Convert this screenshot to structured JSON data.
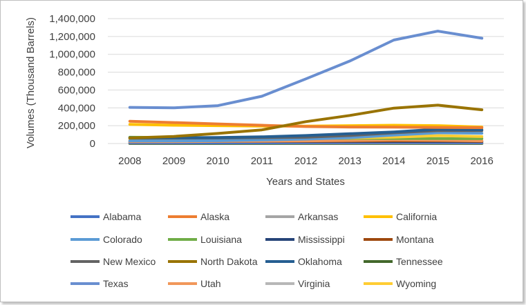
{
  "chart_data": {
    "type": "line",
    "title": "",
    "xlabel": "Years and States",
    "ylabel": "Volumes (Thousand Barrels)",
    "x": [
      "2008",
      "2009",
      "2010",
      "2011",
      "2012",
      "2013",
      "2014",
      "2015",
      "2016"
    ],
    "ylim": [
      0,
      1400000
    ],
    "yticks": [
      0,
      200000,
      400000,
      600000,
      800000,
      1000000,
      1200000,
      1400000
    ],
    "ytick_labels": [
      "0",
      "200,000",
      "400,000",
      "600,000",
      "800,000",
      "1,000,000",
      "1,200,000",
      "1,400,000"
    ],
    "grid": "horizontal",
    "legend_position": "bottom",
    "series": [
      {
        "name": "Alabama",
        "color": "#4472C4",
        "values": [
          9000,
          8000,
          8000,
          8000,
          9000,
          11000,
          12000,
          11000,
          9000
        ]
      },
      {
        "name": "Alaska",
        "color": "#ED7D31",
        "values": [
          250000,
          235000,
          220000,
          205000,
          190000,
          185000,
          183000,
          180000,
          178000
        ]
      },
      {
        "name": "Arkansas",
        "color": "#A5A5A5",
        "values": [
          6000,
          6000,
          6000,
          6000,
          6000,
          6000,
          6000,
          6000,
          6000
        ]
      },
      {
        "name": "California",
        "color": "#FFC000",
        "values": [
          215000,
          205000,
          200000,
          195000,
          196000,
          200000,
          205000,
          200000,
          185000
        ]
      },
      {
        "name": "Colorado",
        "color": "#5B9BD5",
        "values": [
          30000,
          30000,
          32000,
          40000,
          50000,
          65000,
          95000,
          120000,
          115000
        ]
      },
      {
        "name": "Louisiana",
        "color": "#70AD47",
        "values": [
          70000,
          68000,
          65000,
          62000,
          60000,
          58000,
          57000,
          56000,
          55000
        ]
      },
      {
        "name": "Mississippi",
        "color": "#264478",
        "values": [
          22000,
          23000,
          23000,
          24000,
          24000,
          24000,
          24000,
          24000,
          23000
        ]
      },
      {
        "name": "Montana",
        "color": "#9E480E",
        "values": [
          30000,
          28000,
          25000,
          25000,
          26000,
          28000,
          30000,
          30000,
          25000
        ]
      },
      {
        "name": "New Mexico",
        "color": "#636363",
        "values": [
          60000,
          61000,
          62000,
          66000,
          70000,
          90000,
          120000,
          145000,
          145000
        ]
      },
      {
        "name": "North Dakota",
        "color": "#997300",
        "values": [
          63000,
          80000,
          113000,
          153000,
          245000,
          315000,
          397000,
          430000,
          378000
        ]
      },
      {
        "name": "Oklahoma",
        "color": "#255E91",
        "values": [
          65000,
          66000,
          68000,
          75000,
          90000,
          110000,
          130000,
          160000,
          155000
        ]
      },
      {
        "name": "Tennessee",
        "color": "#43682B",
        "values": [
          300,
          300,
          300,
          300,
          300,
          300,
          300,
          300,
          300
        ]
      },
      {
        "name": "Texas",
        "color": "#698ED0",
        "values": [
          405000,
          400000,
          425000,
          530000,
          725000,
          925000,
          1160000,
          1260000,
          1180000
        ]
      },
      {
        "name": "Utah",
        "color": "#F1975A",
        "values": [
          22000,
          22000,
          24000,
          26000,
          30000,
          35000,
          40000,
          37000,
          30000
        ]
      },
      {
        "name": "Virginia",
        "color": "#B7B7B7",
        "values": [
          100,
          100,
          100,
          100,
          100,
          100,
          100,
          100,
          100
        ]
      },
      {
        "name": "Wyoming",
        "color": "#FFCD33",
        "values": [
          52000,
          51000,
          53000,
          55000,
          58000,
          63000,
          72000,
          88000,
          78000
        ]
      }
    ]
  }
}
